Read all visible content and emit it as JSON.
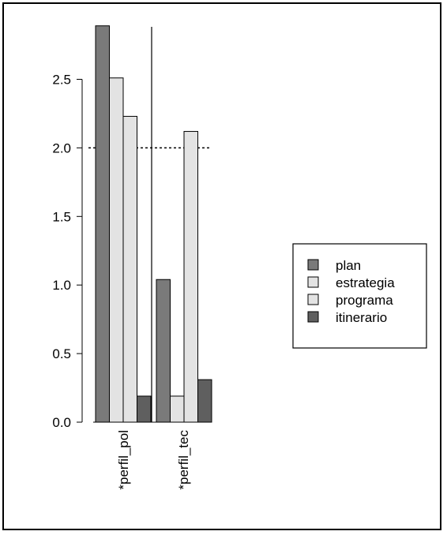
{
  "chart_data": {
    "type": "bar",
    "categories": [
      "*perfil_pol",
      "*perfil_tec"
    ],
    "series": [
      {
        "name": "plan",
        "values": [
          2.89,
          1.04
        ],
        "color": "#7a7a7a"
      },
      {
        "name": "estrategia",
        "values": [
          2.51,
          0.19
        ],
        "color": "#e3e3e3"
      },
      {
        "name": "programa",
        "values": [
          2.23,
          2.12
        ],
        "color": "#e3e3e3"
      },
      {
        "name": "itinerario",
        "values": [
          0.19,
          0.31
        ],
        "color": "#5f5f5f"
      }
    ],
    "yticks": [
      "0.0",
      "0.5",
      "1.0",
      "1.5",
      "2.0",
      "2.5"
    ],
    "ylim": [
      0,
      3.0
    ],
    "reference_line": {
      "y": 2.0,
      "style": "dotted"
    },
    "legend_placement": "right",
    "grid": false,
    "title": "",
    "xlabel": "",
    "ylabel": ""
  }
}
